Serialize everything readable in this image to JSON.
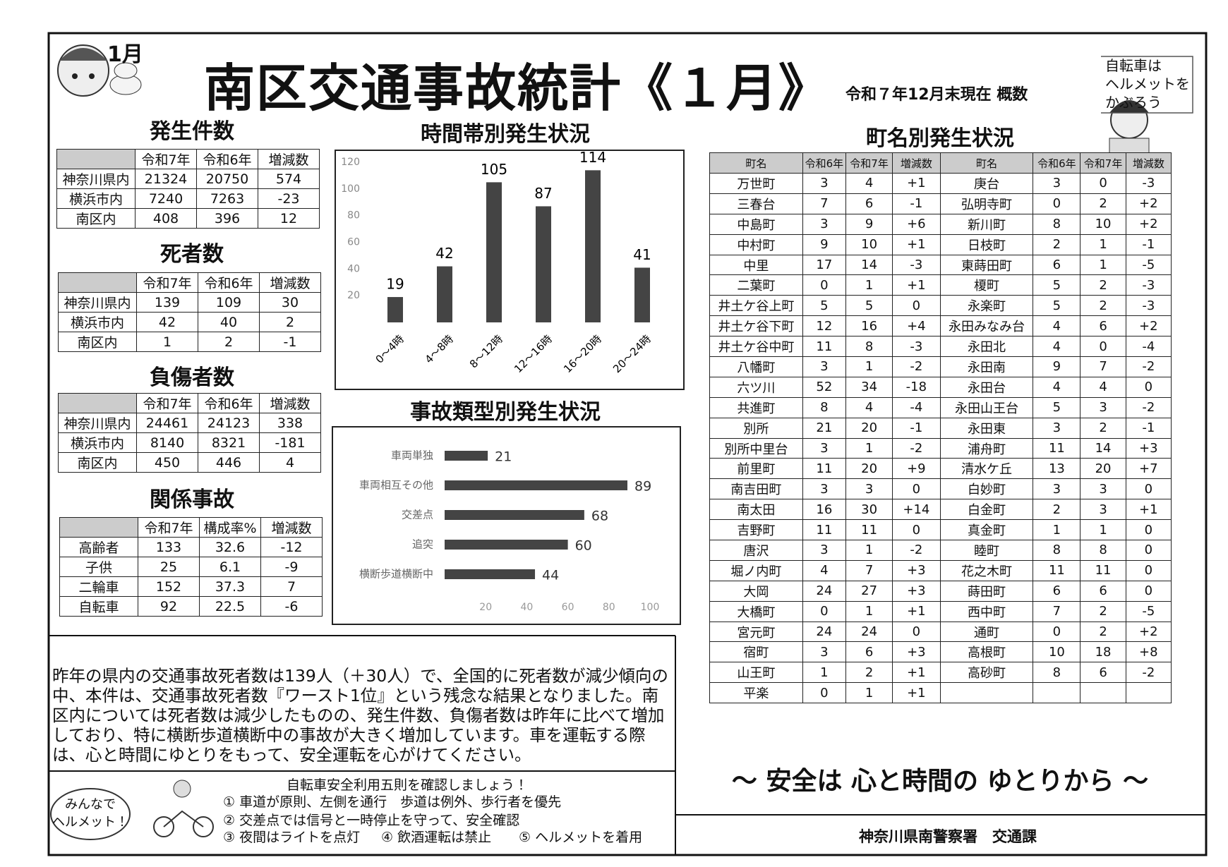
{
  "header": {
    "badge": "1月",
    "title": "南区交通事故統計《１月》",
    "subtitle": "令和７年12月末現在 概数",
    "bubble": [
      "自転車は",
      "ヘルメットを",
      "かぶろう"
    ]
  },
  "stat_tables": [
    {
      "title": "発生件数",
      "header": [
        "令和7年",
        "令和6年",
        "増減数"
      ],
      "rows": [
        [
          "神奈川県内",
          "21324",
          "20750",
          "574"
        ],
        [
          "横浜市内",
          "7240",
          "7263",
          "-23"
        ],
        [
          "南区内",
          "408",
          "396",
          "12"
        ]
      ]
    },
    {
      "title": "死者数",
      "header": [
        "令和7年",
        "令和6年",
        "増減数"
      ],
      "rows": [
        [
          "神奈川県内",
          "139",
          "109",
          "30"
        ],
        [
          "横浜市内",
          "42",
          "40",
          "2"
        ],
        [
          "南区内",
          "1",
          "2",
          "-1"
        ]
      ]
    },
    {
      "title": "負傷者数",
      "header": [
        "令和7年",
        "令和6年",
        "増減数"
      ],
      "rows": [
        [
          "神奈川県内",
          "24461",
          "24123",
          "338"
        ],
        [
          "横浜市内",
          "8140",
          "8321",
          "-181"
        ],
        [
          "南区内",
          "450",
          "446",
          "4"
        ]
      ]
    },
    {
      "title": "関係事故",
      "header": [
        "令和7年",
        "構成率%",
        "増減数"
      ],
      "rows": [
        [
          "高齢者",
          "133",
          "32.6",
          "-12"
        ],
        [
          "子供",
          "25",
          "6.1",
          "-9"
        ],
        [
          "二輪車",
          "152",
          "37.3",
          "7"
        ],
        [
          "自転車",
          "92",
          "22.5",
          "-6"
        ]
      ]
    }
  ],
  "chart_data": [
    {
      "type": "bar",
      "title": "時間帯別発生状況",
      "categories": [
        "0～4時",
        "4～8時",
        "8～12時",
        "12～16時",
        "16～20時",
        "20～24時"
      ],
      "values": [
        19,
        42,
        105,
        87,
        114,
        41
      ],
      "color": "#444444",
      "ylim": [
        0,
        120
      ],
      "yticks": [
        20,
        40,
        60,
        80,
        100,
        120
      ]
    },
    {
      "type": "barh",
      "title": "事故類型別発生状況",
      "categories": [
        "車両単独",
        "車両相互その他",
        "交差点",
        "追突",
        "横断歩道横断中"
      ],
      "values": [
        21,
        89,
        68,
        60,
        44
      ],
      "color": "#444444",
      "xlim": [
        0,
        100
      ],
      "xticks": [
        20,
        40,
        60,
        80,
        100
      ]
    }
  ],
  "town_table": {
    "title": "町名別発生状況",
    "header": [
      "町名",
      "令和6年",
      "令和7年",
      "増減数",
      "町名",
      "令和6年",
      "令和7年",
      "増減数"
    ],
    "left_rows": [
      [
        "万世町",
        "3",
        "4",
        "+1"
      ],
      [
        "三春台",
        "7",
        "6",
        "-1"
      ],
      [
        "中島町",
        "3",
        "9",
        "+6"
      ],
      [
        "中村町",
        "9",
        "10",
        "+1"
      ],
      [
        "中里",
        "17",
        "14",
        "-3"
      ],
      [
        "二葉町",
        "0",
        "1",
        "+1"
      ],
      [
        "井土ケ谷上町",
        "5",
        "5",
        "0"
      ],
      [
        "井土ケ谷下町",
        "12",
        "16",
        "+4"
      ],
      [
        "井土ケ谷中町",
        "11",
        "8",
        "-3"
      ],
      [
        "八幡町",
        "3",
        "1",
        "-2"
      ],
      [
        "六ツ川",
        "52",
        "34",
        "-18"
      ],
      [
        "共進町",
        "8",
        "4",
        "-4"
      ],
      [
        "別所",
        "21",
        "20",
        "-1"
      ],
      [
        "別所中里台",
        "3",
        "1",
        "-2"
      ],
      [
        "前里町",
        "11",
        "20",
        "+9"
      ],
      [
        "南吉田町",
        "3",
        "3",
        "0"
      ],
      [
        "南太田",
        "16",
        "30",
        "+14"
      ],
      [
        "吉野町",
        "11",
        "11",
        "0"
      ],
      [
        "唐沢",
        "3",
        "1",
        "-2"
      ],
      [
        "堀ノ内町",
        "4",
        "7",
        "+3"
      ],
      [
        "大岡",
        "24",
        "27",
        "+3"
      ],
      [
        "大橋町",
        "0",
        "1",
        "+1"
      ],
      [
        "宮元町",
        "24",
        "24",
        "0"
      ],
      [
        "宿町",
        "3",
        "6",
        "+3"
      ],
      [
        "山王町",
        "1",
        "2",
        "+1"
      ],
      [
        "平楽",
        "0",
        "1",
        "+1"
      ]
    ],
    "right_rows": [
      [
        "庚台",
        "3",
        "0",
        "-3"
      ],
      [
        "弘明寺町",
        "0",
        "2",
        "+2"
      ],
      [
        "新川町",
        "8",
        "10",
        "+2"
      ],
      [
        "日枝町",
        "2",
        "1",
        "-1"
      ],
      [
        "東蒔田町",
        "6",
        "1",
        "-5"
      ],
      [
        "榎町",
        "5",
        "2",
        "-3"
      ],
      [
        "永楽町",
        "5",
        "2",
        "-3"
      ],
      [
        "永田みなみ台",
        "4",
        "6",
        "+2"
      ],
      [
        "永田北",
        "4",
        "0",
        "-4"
      ],
      [
        "永田南",
        "9",
        "7",
        "-2"
      ],
      [
        "永田台",
        "4",
        "4",
        "0"
      ],
      [
        "永田山王台",
        "5",
        "3",
        "-2"
      ],
      [
        "永田東",
        "3",
        "2",
        "-1"
      ],
      [
        "浦舟町",
        "11",
        "14",
        "+3"
      ],
      [
        "清水ケ丘",
        "13",
        "20",
        "+7"
      ],
      [
        "白妙町",
        "3",
        "3",
        "0"
      ],
      [
        "白金町",
        "2",
        "3",
        "+1"
      ],
      [
        "真金町",
        "1",
        "1",
        "0"
      ],
      [
        "睦町",
        "8",
        "8",
        "0"
      ],
      [
        "花之木町",
        "11",
        "11",
        "0"
      ],
      [
        "蒔田町",
        "6",
        "6",
        "0"
      ],
      [
        "西中町",
        "7",
        "2",
        "-5"
      ],
      [
        "通町",
        "0",
        "2",
        "+2"
      ],
      [
        "高根町",
        "10",
        "18",
        "+8"
      ],
      [
        "高砂町",
        "8",
        "6",
        "-2"
      ]
    ]
  },
  "message": "昨年の県内の交通事故死者数は139人（＋30人）で、全国的に死者数が減少傾向の中、本件は、交通事故死者数『ワースト1位』という残念な結果となりました。南区内については死者数は減少したものの、発生件数、負傷者数は昨年に比べて増加しており、特に横断歩道横断中の事故が大きく増加しています。車を運転する際は、心と時間にゆとりをもって、安全運転を心がけてください。",
  "bicycle_rules": {
    "bubble": [
      "みんなで",
      "ヘルメット！"
    ],
    "title": "自転車安全利用五則を確認しましょう！",
    "items": [
      "① 車道が原則、左側を通行　歩道は例外、歩行者を優先",
      "② 交差点では信号と一時停止を守って、安全確認",
      "③ 夜間はライトを点灯",
      "④ 飲酒運転は禁止",
      "⑤ ヘルメットを着用"
    ]
  },
  "slogan": "～ 安全は 心と時間の ゆとりから ～",
  "footer": "神奈川県南警察署　交通課"
}
